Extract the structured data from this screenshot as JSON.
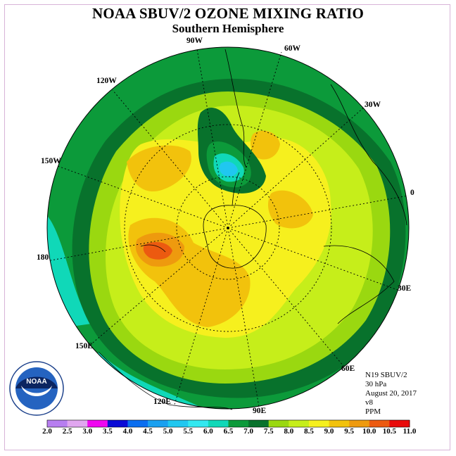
{
  "title": "NOAA SBUV/2 OZONE MIXING RATIO",
  "subtitle": "Southern Hemisphere",
  "meridian_labels": {
    "w90": "90W",
    "w60": "60W",
    "w30": "30W",
    "e0": "0",
    "e30": "30E",
    "e60": "60E",
    "e90": "90E",
    "e120": "120E",
    "e150": "150E",
    "e180": "180",
    "w150": "150W",
    "w120": "120W"
  },
  "info": {
    "instrument": "N19 SBUV/2",
    "level": "30 hPa",
    "date": "August 20, 2017",
    "version": "v8",
    "units": "PPM"
  },
  "logo": {
    "text": "NOAA",
    "icon": "noaa-logo-icon"
  },
  "colorbar": {
    "labels": [
      "2.0",
      "2.5",
      "3.0",
      "3.5",
      "4.0",
      "4.5",
      "5.0",
      "5.5",
      "6.0",
      "6.5",
      "7.0",
      "7.5",
      "8.0",
      "8.5",
      "9.0",
      "9.5",
      "10.0",
      "10.5",
      "11.0"
    ],
    "colors": [
      "#b77ef0",
      "#e0a6ef",
      "#f006f0",
      "#0b0bd6",
      "#0a6ef0",
      "#1aa0f0",
      "#20c7f0",
      "#33e8f0",
      "#10d8b8",
      "#0c9a3a",
      "#08722c",
      "#9ad810",
      "#c6ee1a",
      "#f6f01e",
      "#f2c20c",
      "#ee9a0e",
      "#ec5a10",
      "#e80a0a",
      "#8b5a2b"
    ]
  },
  "map_colors": {
    "c6": "#10d8b8",
    "c6_5": "#0c9a3a",
    "c7": "#08722c",
    "c7_5": "#9ad810",
    "c8": "#c6ee1a",
    "c8_5": "#f6f01e",
    "c9": "#f2c20c",
    "c9_5": "#ee9a0e",
    "c10": "#ec5a10",
    "c5": "#20c7f0"
  }
}
